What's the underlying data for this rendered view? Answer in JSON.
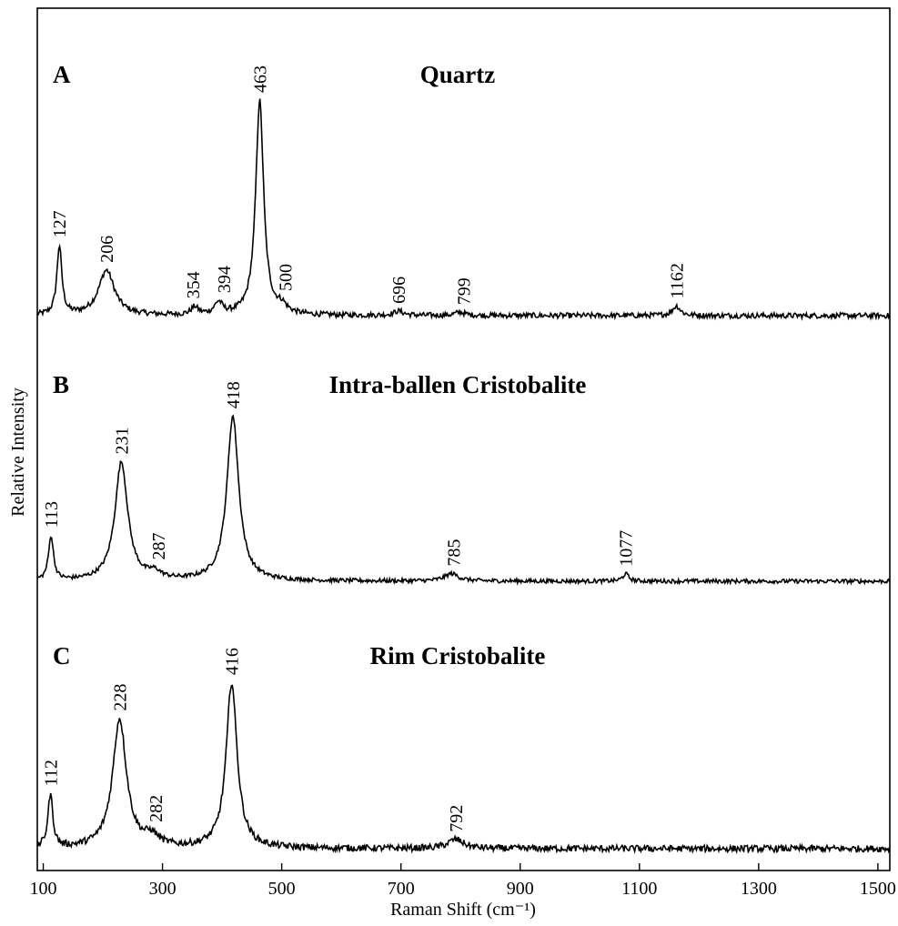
{
  "chart_data": {
    "type": "line",
    "xlabel": "Raman Shift (cm⁻¹)",
    "ylabel": "Relative Intensity",
    "xlim": [
      90,
      1520
    ],
    "xticks": [
      100,
      300,
      500,
      700,
      900,
      1100,
      1300,
      1500
    ],
    "xtick_labels": [
      "100",
      "300",
      "500",
      "700",
      "900",
      "1100",
      "1300",
      "1500"
    ],
    "grid": false,
    "legend": "none",
    "panels": [
      {
        "letter": "A",
        "title": "Quartz",
        "peaks": [
          {
            "x": 127,
            "h": 0.32,
            "w": 5,
            "label": "127"
          },
          {
            "x": 206,
            "h": 0.21,
            "w": 16,
            "label": "206"
          },
          {
            "x": 354,
            "h": 0.035,
            "w": 7,
            "label": "354"
          },
          {
            "x": 394,
            "h": 0.055,
            "w": 8,
            "label": "394"
          },
          {
            "x": 463,
            "h": 1.0,
            "w": 8,
            "label": "463"
          },
          {
            "x": 500,
            "h": 0.035,
            "w": 10,
            "label": "500"
          },
          {
            "x": 696,
            "h": 0.02,
            "w": 10,
            "label": "696"
          },
          {
            "x": 799,
            "h": 0.015,
            "w": 10,
            "label": "799"
          },
          {
            "x": 1162,
            "h": 0.045,
            "w": 8,
            "label": "1162"
          }
        ]
      },
      {
        "letter": "B",
        "title": "Intra-ballen Cristobalite",
        "peaks": [
          {
            "x": 113,
            "h": 0.27,
            "w": 5,
            "label": "113"
          },
          {
            "x": 231,
            "h": 0.72,
            "w": 13,
            "label": "231"
          },
          {
            "x": 287,
            "h": 0.04,
            "w": 12,
            "label": "287"
          },
          {
            "x": 418,
            "h": 1.0,
            "w": 12,
            "label": "418"
          },
          {
            "x": 785,
            "h": 0.045,
            "w": 14,
            "label": "785"
          },
          {
            "x": 1077,
            "h": 0.045,
            "w": 6,
            "label": "1077"
          }
        ]
      },
      {
        "letter": "C",
        "title": "Rim Cristobalite",
        "peaks": [
          {
            "x": 112,
            "h": 0.32,
            "w": 5,
            "label": "112"
          },
          {
            "x": 228,
            "h": 0.78,
            "w": 14,
            "label": "228"
          },
          {
            "x": 282,
            "h": 0.06,
            "w": 14,
            "label": "282"
          },
          {
            "x": 416,
            "h": 1.0,
            "w": 11,
            "label": "416"
          },
          {
            "x": 792,
            "h": 0.055,
            "w": 16,
            "label": "792"
          }
        ]
      }
    ]
  }
}
